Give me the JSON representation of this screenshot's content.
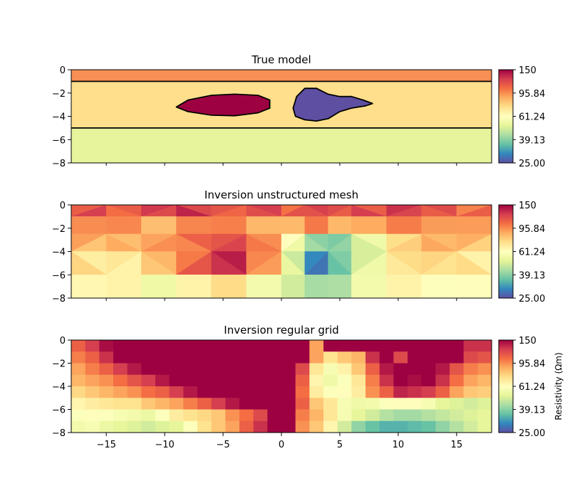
{
  "chart_data": [
    {
      "type": "heatmap",
      "title": "True model",
      "xlim": [
        -18,
        18
      ],
      "ylim": [
        -8,
        0
      ],
      "yticks": [
        0,
        -2,
        -4,
        -6,
        -8
      ],
      "ytick_labels": [
        "0",
        "−2",
        "−4",
        "−6",
        "−8"
      ],
      "layers": [
        {
          "name": "top layer",
          "y_range": [
            -1,
            0
          ],
          "resistivity_ohm_m": 100,
          "color": "#f88f54"
        },
        {
          "name": "middle layer",
          "y_range": [
            -5,
            -1
          ],
          "resistivity_ohm_m": 75,
          "color": "#ffdf8b"
        },
        {
          "name": "bottom layer",
          "y_range": [
            -8,
            -5
          ],
          "resistivity_ohm_m": 50,
          "color": "#e7f49c"
        }
      ],
      "anomalies": [
        {
          "name": "conductive-ellipse",
          "resistivity_ohm_m": 150,
          "color": "#9e0142",
          "outline": [
            [
              -9,
              -3.2
            ],
            [
              -8,
              -2.6
            ],
            [
              -6,
              -2.2
            ],
            [
              -4,
              -2.1
            ],
            [
              -2,
              -2.2
            ],
            [
              -1,
              -2.6
            ],
            [
              -1,
              -3.3
            ],
            [
              -2,
              -3.7
            ],
            [
              -4,
              -3.95
            ],
            [
              -6,
              -3.9
            ],
            [
              -8,
              -3.6
            ]
          ]
        },
        {
          "name": "resistive-blob",
          "resistivity_ohm_m": 25,
          "color": "#5e4fa2",
          "outline": [
            [
              1,
              -3.3
            ],
            [
              1.3,
              -2.3
            ],
            [
              2,
              -1.6
            ],
            [
              3,
              -1.6
            ],
            [
              4,
              -2.1
            ],
            [
              5,
              -2.3
            ],
            [
              6,
              -2.3
            ],
            [
              7,
              -2.6
            ],
            [
              7.8,
              -2.9
            ],
            [
              7.2,
              -3.1
            ],
            [
              6,
              -3.3
            ],
            [
              5,
              -3.6
            ],
            [
              4,
              -4.2
            ],
            [
              3,
              -4.4
            ],
            [
              2,
              -4.3
            ],
            [
              1.2,
              -4.0
            ]
          ]
        }
      ],
      "boundaries_y": [
        -1,
        -5
      ],
      "colorbar": {
        "ticks": [
          "150",
          "95.84",
          "61.24",
          "39.13",
          "25.00"
        ],
        "label": ""
      }
    },
    {
      "type": "heatmap",
      "title": "Inversion unstructured mesh",
      "xlim": [
        -18,
        18
      ],
      "ylim": [
        -8,
        0
      ],
      "yticks": [
        0,
        -2,
        -4,
        -6,
        -8
      ],
      "ytick_labels": [
        "0",
        "−2",
        "−4",
        "−6",
        "−8"
      ],
      "x_nodes": [
        -18,
        -15,
        -12,
        -9,
        -6,
        -3,
        0,
        2,
        4,
        6,
        9,
        12,
        15,
        18
      ],
      "y_nodes": [
        0,
        -1,
        -2.5,
        -4,
        -6,
        -8
      ],
      "resistivity_ohm_m": [
        [
          118,
          112,
          120,
          128,
          115,
          118,
          110,
          124,
          112,
          118,
          130,
          112,
          105
        ],
        [
          96,
          92,
          88,
          98,
          94,
          90,
          84,
          96,
          90,
          88,
          95,
          98,
          92
        ],
        [
          86,
          88,
          90,
          104,
          122,
          96,
          58,
          42,
          38,
          52,
          78,
          84,
          82
        ],
        [
          72,
          70,
          80,
          108,
          138,
          92,
          50,
          30,
          36,
          52,
          74,
          72,
          70
        ],
        [
          64,
          62,
          58,
          66,
          70,
          60,
          48,
          40,
          46,
          56,
          62,
          64,
          62
        ]
      ],
      "colorbar": {
        "ticks": [
          "150",
          "95.84",
          "61.24",
          "39.13",
          "25.00"
        ],
        "label": ""
      }
    },
    {
      "type": "heatmap",
      "title": "Inversion regular grid",
      "xlim": [
        -18,
        18
      ],
      "ylim": [
        -8,
        0
      ],
      "xticks": [
        -15,
        -10,
        -5,
        0,
        5,
        10,
        15
      ],
      "xtick_labels": [
        "−15",
        "−10",
        "−5",
        "0",
        "5",
        "10",
        "15"
      ],
      "yticks": [
        0,
        -2,
        -4,
        -6,
        -8
      ],
      "ytick_labels": [
        "0",
        "−2",
        "−4",
        "−6",
        "−8"
      ],
      "x_edges": [
        -18,
        -16.8,
        -15.6,
        -14.4,
        -13.2,
        -12,
        -10.8,
        -9.6,
        -8.4,
        -7.2,
        -6,
        -4.8,
        -3.6,
        -2.4,
        -1.2,
        0,
        1.2,
        2.4,
        3.6,
        4.8,
        6,
        7.2,
        8.4,
        9.6,
        10.8,
        12,
        13.2,
        14.4,
        15.6,
        16.8,
        18
      ],
      "y_edges": [
        0,
        -1,
        -2,
        -3,
        -4,
        -5,
        -6,
        -7,
        -8
      ],
      "resistivity_ohm_m": [
        [
          110,
          125,
          145,
          150,
          150,
          150,
          150,
          150,
          150,
          150,
          150,
          150,
          150,
          150,
          150,
          150,
          150,
          90,
          150,
          150,
          150,
          150,
          150,
          150,
          150,
          150,
          150,
          150,
          130,
          130
        ],
        [
          100,
          110,
          130,
          150,
          150,
          150,
          150,
          150,
          150,
          150,
          150,
          150,
          150,
          150,
          150,
          150,
          150,
          90,
          72,
          80,
          85,
          130,
          150,
          120,
          150,
          150,
          150,
          150,
          120,
          115
        ],
        [
          90,
          100,
          110,
          125,
          140,
          150,
          150,
          150,
          150,
          150,
          150,
          150,
          150,
          150,
          150,
          150,
          120,
          70,
          58,
          66,
          80,
          110,
          140,
          150,
          150,
          150,
          140,
          115,
          100,
          95
        ],
        [
          85,
          90,
          95,
          105,
          115,
          125,
          140,
          150,
          150,
          150,
          150,
          150,
          150,
          150,
          150,
          150,
          110,
          65,
          55,
          60,
          70,
          100,
          130,
          150,
          145,
          150,
          130,
          105,
          90,
          85
        ],
        [
          75,
          80,
          85,
          90,
          95,
          105,
          110,
          125,
          140,
          150,
          150,
          150,
          150,
          150,
          150,
          150,
          105,
          68,
          60,
          62,
          68,
          95,
          110,
          135,
          130,
          125,
          110,
          90,
          80,
          78
        ],
        [
          65,
          68,
          70,
          72,
          72,
          80,
          85,
          90,
          100,
          110,
          125,
          140,
          150,
          150,
          150,
          150,
          110,
          80,
          70,
          58,
          55,
          56,
          60,
          62,
          62,
          58,
          52,
          50,
          48,
          50
        ],
        [
          60,
          62,
          60,
          58,
          56,
          54,
          60,
          68,
          72,
          75,
          80,
          95,
          105,
          120,
          150,
          150,
          100,
          85,
          70,
          58,
          52,
          48,
          44,
          42,
          42,
          44,
          46,
          48,
          50,
          52
        ],
        [
          56,
          58,
          54,
          52,
          50,
          48,
          50,
          52,
          60,
          72,
          80,
          90,
          110,
          130,
          150,
          150,
          95,
          80,
          65,
          48,
          40,
          36,
          34,
          34,
          35,
          36,
          40,
          44,
          48,
          52
        ]
      ],
      "colorbar": {
        "ticks": [
          "150",
          "95.84",
          "61.24",
          "39.13",
          "25.00"
        ],
        "label": "Resistivity (Ωm)"
      }
    }
  ]
}
